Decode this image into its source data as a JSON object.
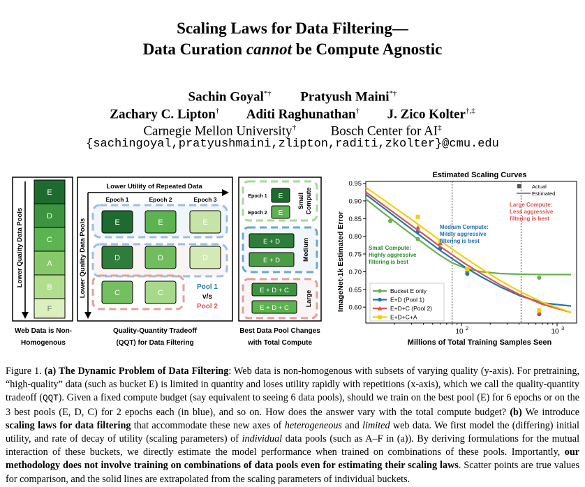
{
  "paper": {
    "title_line1": "Scaling Laws for Data Filtering—",
    "title_line2_a": "Data Curation ",
    "title_line2_em": "cannot",
    "title_line2_b": " be Compute Agnostic",
    "authors_row1": [
      {
        "name": "Sachin Goyal",
        "mark": "*†"
      },
      {
        "name": "Pratyush Maini",
        "mark": "*†"
      }
    ],
    "authors_row2": [
      {
        "name": "Zachary C. Lipton",
        "mark": "†"
      },
      {
        "name": "Aditi Raghunathan",
        "mark": "†"
      },
      {
        "name": "J. Zico Kolter",
        "mark": "†,‡"
      }
    ],
    "affiliations": [
      {
        "name": "Carnegie Mellon University",
        "mark": "†"
      },
      {
        "name": "Bosch Center for AI",
        "mark": "‡"
      }
    ],
    "email": "{sachingoyal,pratyushmaini,zlipton,raditi,zkolter}@cmu.edu"
  },
  "figure_a": {
    "pools_axis_label": "Lower Quality Data Pools",
    "pools": [
      "E",
      "D",
      "C",
      "A",
      "B",
      "F"
    ],
    "pools_caption_1": "Web Data is Non-",
    "pools_caption_2": "Homogenous",
    "qqt_top_label": "Lower Utility of Repeated Data",
    "qqt_side_label": "Lower Quality Data Pools",
    "epochs": [
      "Epoch 1",
      "Epoch 2",
      "Epoch 3"
    ],
    "grid_rows": [
      [
        "E",
        "E",
        "E"
      ],
      [
        "D",
        "D",
        "D"
      ],
      [
        "C",
        "C",
        ""
      ]
    ],
    "pool1_label": "Pool 1",
    "vs_label": "v/s",
    "pool2_label": "Pool 2",
    "qqt_caption_1": "Quality-Quantity Tradeoff",
    "qqt_caption_2": "(QQT) for Data Filtering",
    "compute_small_epochs": [
      "Epoch 1",
      "Epoch 2"
    ],
    "compute_small_cells": [
      "E",
      "E"
    ],
    "compute_small_label_1": "Small",
    "compute_small_label_2": "Compute",
    "compute_medium_cells": [
      "E + D",
      "E + D"
    ],
    "compute_medium_label": "Medium",
    "compute_large_cells": [
      "E + D + C",
      "E + D + C"
    ],
    "compute_large_label": "Large",
    "compute_caption_1": "Best Data Pool Changes",
    "compute_caption_2": "with Total Compute"
  },
  "chart_data": {
    "type": "line",
    "title": "Estimated Scaling Curves",
    "xlabel": "Millions of Total Training Samples Seen",
    "ylabel": "ImageNet-1k Estimated Error",
    "xscale": "log",
    "xlim": [
      10,
      1600
    ],
    "ylim": [
      0.555,
      0.955
    ],
    "yticks": [
      0.6,
      0.65,
      0.7,
      0.75,
      0.8,
      0.85,
      0.9,
      0.95
    ],
    "ytick_labels": [
      "0.60",
      "0.65",
      "0.70",
      "0.75",
      "0.80",
      "0.85",
      "0.90",
      "0.95"
    ],
    "xticks": [
      100,
      1000
    ],
    "xtick_base": "10",
    "xtick_exps": [
      "2",
      "3"
    ],
    "vlines": [
      80,
      420
    ],
    "grid": false,
    "style_legend": [
      "Actual",
      "Estimated"
    ],
    "legend_position": "lower-left",
    "annotations": [
      {
        "lines": [
          "Small Compute:",
          "Highly aggressive",
          "filtering is best"
        ],
        "color": "#2e8b2e"
      },
      {
        "lines": [
          "Medium Compute:",
          "Mildly aggressive",
          "filtering is best"
        ],
        "color": "#1f6fb4"
      },
      {
        "lines": [
          "Large Compute:",
          "Less aggressive",
          "filtering is best"
        ],
        "color": "#d9534f"
      }
    ],
    "series": [
      {
        "name": "Bucket E only",
        "color": "#6ab04c",
        "marker": "circle",
        "x": [
          10,
          15,
          22,
          32,
          45,
          60,
          80,
          110,
          160,
          250,
          400,
          700,
          1400
        ],
        "y": [
          0.905,
          0.868,
          0.833,
          0.8,
          0.77,
          0.746,
          0.725,
          0.71,
          0.7,
          0.695,
          0.693,
          0.692,
          0.692
        ],
        "points_x": [
          18,
          35,
          115,
          650
        ],
        "points_y": [
          0.843,
          0.792,
          0.706,
          0.683
        ]
      },
      {
        "name": "E+D (Pool 1)",
        "color": "#1f77b4",
        "marker": "circle",
        "x": [
          10,
          15,
          22,
          32,
          45,
          60,
          80,
          110,
          160,
          250,
          400,
          700,
          1400
        ],
        "y": [
          0.918,
          0.882,
          0.848,
          0.815,
          0.785,
          0.76,
          0.737,
          0.712,
          0.686,
          0.658,
          0.633,
          0.612,
          0.603
        ],
        "points_x": [
          35,
          60,
          115,
          650
        ],
        "points_y": [
          0.813,
          0.766,
          0.694,
          0.58
        ]
      },
      {
        "name": "E+D+C (Pool 2)",
        "color": "#d9534f",
        "marker": "triangle",
        "x": [
          10,
          15,
          22,
          32,
          45,
          60,
          80,
          110,
          160,
          250,
          400,
          700,
          1400
        ],
        "y": [
          0.925,
          0.89,
          0.857,
          0.825,
          0.796,
          0.771,
          0.748,
          0.722,
          0.695,
          0.664,
          0.636,
          0.608,
          0.585
        ],
        "points_x": [
          35,
          60,
          115,
          650
        ],
        "points_y": [
          0.825,
          0.781,
          0.704,
          0.585
        ]
      },
      {
        "name": "E+D+C+A",
        "color": "#f5d000",
        "marker": "square",
        "x": [
          10,
          15,
          22,
          32,
          45,
          60,
          80,
          110,
          160,
          250,
          400,
          700,
          1400
        ],
        "y": [
          0.938,
          0.905,
          0.873,
          0.842,
          0.813,
          0.788,
          0.764,
          0.738,
          0.709,
          0.676,
          0.645,
          0.614,
          0.585
        ],
        "points_x": [
          35,
          60,
          115,
          650
        ],
        "points_y": [
          0.855,
          0.787,
          0.707,
          0.591
        ]
      }
    ]
  },
  "caption": {
    "fig_label": "Figure 1.",
    "a_head": "(a) The Dynamic Problem of Data Filtering",
    "text1": ": Web data is non-homogenous with subsets of varying quality (y-axis). For pretraining, “high-quality” data (such as bucket E) is limited in quantity and loses utility rapidly with repetitions (x-axis), which we call the quality-quantity tradeoff (",
    "qqt_code": "QQT",
    "text2": "). Given a fixed compute budget (say equivalent to seeing 6 data pools), should we train on the best pool (E) for 6 epochs or on the 3 best pools (E, D, C) for 2 epochs each (in blue), and so on. How does the answer vary with the total compute budget? ",
    "b_head": "(b)",
    "text3": " We introduce ",
    "b_bold": "scaling laws for data filtering",
    "text4": " that accommodate these new axes of ",
    "em1": "heterogeneous",
    "text5": " and ",
    "em2": "limited",
    "text6": " web data. We first model the (differing) initial utility, and rate of decay of utility (scaling parameters) of ",
    "em3": "individual",
    "text7": " data pools (such as A–F in (a)). By deriving formulations for the mutual interaction of these buckets, we directly estimate the model performance when trained on combinations of these pools. Importantly, ",
    "bold2": "our methodology does not involve training on combinations of data pools even for estimating their scaling laws",
    "text8": ". Scatter points are true values for comparison, and the solid lines are extrapolated from the scaling parameters of individual buckets."
  }
}
